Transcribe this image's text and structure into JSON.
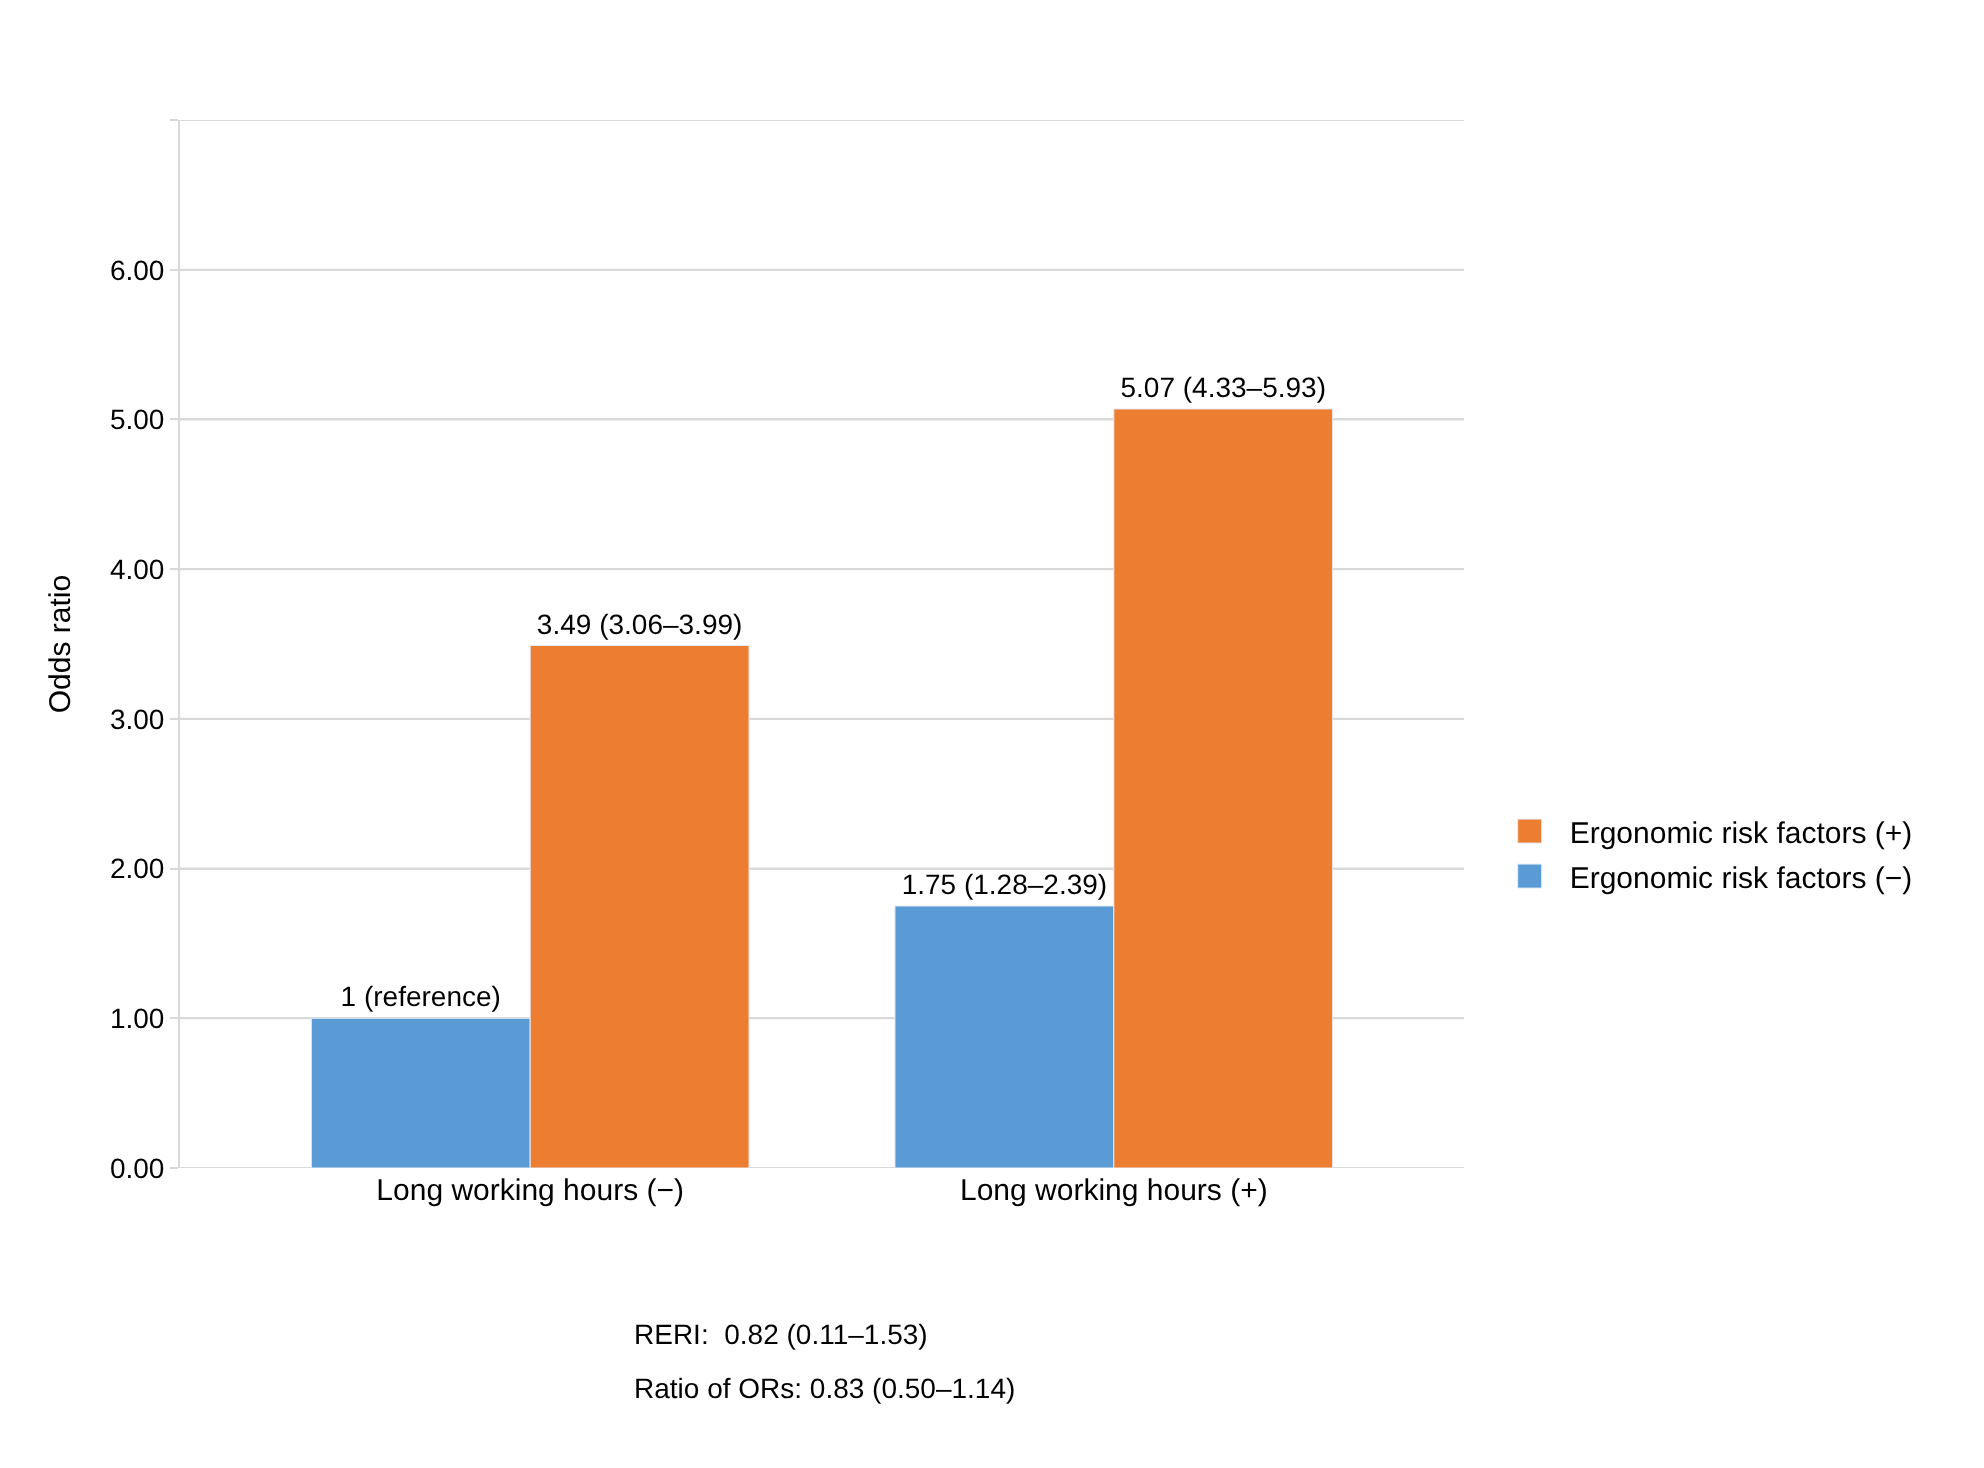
{
  "chart_data": {
    "type": "bar",
    "ylabel": "Odds ratio",
    "categories": [
      "Long working hours (−)",
      "Long working hours (+)"
    ],
    "series": [
      {
        "name": "Ergonomic risk factors (−)",
        "color": "#5b9bd5",
        "values": [
          1,
          1.75
        ],
        "value_labels": [
          "1 (reference)",
          "1.75 (1.28–2.39)"
        ]
      },
      {
        "name": "Ergonomic risk factors (+)",
        "color": "#ed7d31",
        "values": [
          3.49,
          5.07
        ],
        "value_labels": [
          "3.49 (3.06–3.99)",
          "5.07 (4.33–5.93)"
        ]
      }
    ],
    "ylim": [
      0,
      7
    ],
    "yticks": [
      {
        "value": 0,
        "label": "0.00"
      },
      {
        "value": 1,
        "label": "1.00"
      },
      {
        "value": 2,
        "label": "2.00"
      },
      {
        "value": 3,
        "label": "3.00"
      },
      {
        "value": 4,
        "label": "4.00"
      },
      {
        "value": 5,
        "label": "5.00"
      },
      {
        "value": 6,
        "label": "6.00"
      },
      {
        "value": 7,
        "label": null
      }
    ],
    "grid": "y",
    "legend": "right",
    "annotations": [
      "RERI:  0.82 (0.11–1.53)",
      "Ratio of ORs: 0.83 (0.50–1.14)"
    ]
  }
}
